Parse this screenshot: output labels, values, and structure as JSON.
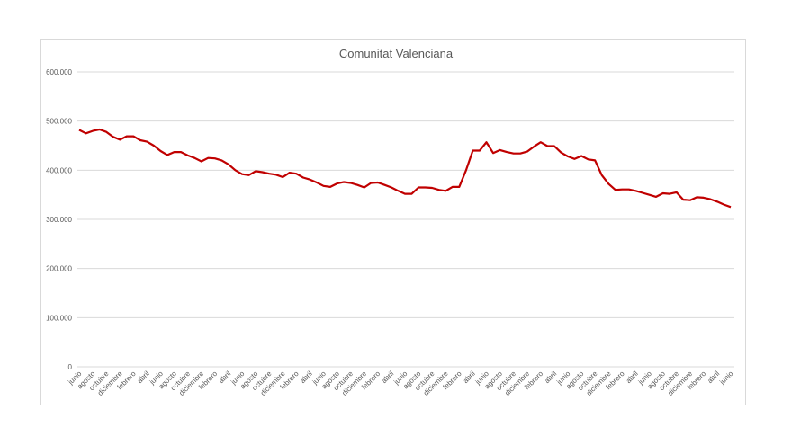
{
  "chart_data": {
    "type": "line",
    "title": "Comunitat Valenciana",
    "xlabel": "",
    "ylabel": "",
    "ylim": [
      0,
      600000
    ],
    "yticks": [
      "0",
      "100.000",
      "200.000",
      "300.000",
      "400.000",
      "500.000",
      "600.000"
    ],
    "grid": true,
    "legend": "none",
    "line_color": "#c00000",
    "x_tick_labels": [
      "junio",
      "agosto",
      "octubre",
      "diciembre",
      "febrero",
      "abril",
      "junio",
      "agosto",
      "octubre",
      "diciembre",
      "febrero",
      "abril",
      "junio",
      "agosto",
      "octubre",
      "diciembre",
      "febrero",
      "abril",
      "junio",
      "agosto",
      "octubre",
      "diciembre",
      "febrero",
      "abril",
      "junio",
      "agosto",
      "octubre",
      "diciembre",
      "febrero",
      "abril",
      "junio",
      "agosto",
      "octubre",
      "diciembre",
      "febrero",
      "abril",
      "junio",
      "agosto",
      "octubre",
      "diciembre",
      "febrero",
      "abril",
      "junio",
      "agosto",
      "octubre",
      "diciembre",
      "febrero",
      "abril",
      "junio"
    ],
    "series": [
      {
        "name": "Comunitat Valenciana",
        "values": [
          482000,
          475000,
          480000,
          483000,
          478000,
          468000,
          462000,
          469000,
          469000,
          461000,
          458000,
          450000,
          439000,
          431000,
          437000,
          437000,
          430000,
          425000,
          418000,
          425000,
          424000,
          420000,
          412000,
          400000,
          392000,
          390000,
          398000,
          396000,
          393000,
          391000,
          386000,
          395000,
          393000,
          385000,
          381000,
          375000,
          368000,
          366000,
          373000,
          376000,
          374000,
          370000,
          365000,
          374000,
          375000,
          370000,
          365000,
          358000,
          352000,
          352000,
          365000,
          365000,
          364000,
          360000,
          358000,
          366000,
          366000,
          400000,
          440000,
          440000,
          457000,
          435000,
          441000,
          437000,
          434000,
          434000,
          438000,
          448000,
          457000,
          449000,
          449000,
          436000,
          428000,
          423000,
          429000,
          422000,
          420000,
          390000,
          372000,
          360000,
          361000,
          361000,
          358000,
          354000,
          350000,
          346000,
          353000,
          352000,
          355000,
          340000,
          339000,
          345000,
          344000,
          341000,
          336000,
          330000,
          325000
        ]
      }
    ]
  }
}
